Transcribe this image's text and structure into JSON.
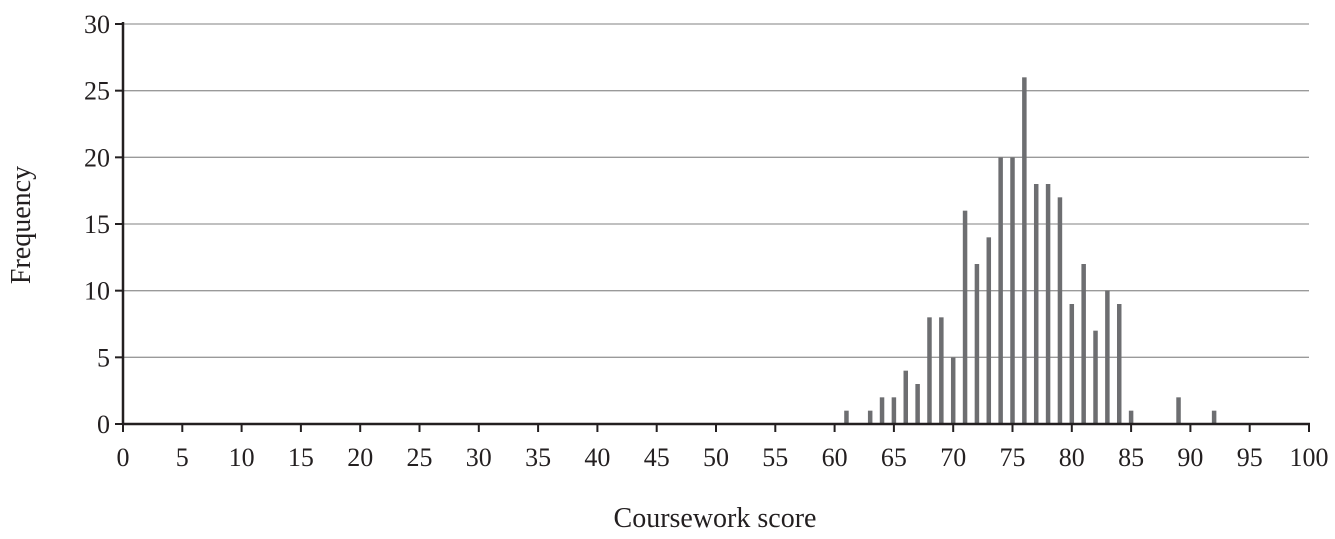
{
  "chart_data": {
    "type": "bar",
    "title": "",
    "xlabel": "Coursework score",
    "ylabel": "Frequency",
    "xlim": [
      0,
      100
    ],
    "ylim": [
      0,
      30
    ],
    "x_ticks": [
      0,
      5,
      10,
      15,
      20,
      25,
      30,
      35,
      40,
      45,
      50,
      55,
      60,
      65,
      70,
      75,
      80,
      85,
      90,
      95,
      100
    ],
    "y_ticks": [
      0,
      5,
      10,
      15,
      20,
      25,
      30
    ],
    "grid": "horizontal",
    "bar_color": "#6d6e71",
    "x": [
      61,
      63,
      64,
      65,
      66,
      67,
      68,
      69,
      70,
      71,
      72,
      73,
      74,
      75,
      76,
      77,
      78,
      79,
      80,
      81,
      82,
      83,
      84,
      85,
      89,
      92
    ],
    "values": [
      1,
      1,
      2,
      2,
      4,
      3,
      8,
      8,
      5,
      16,
      12,
      14,
      20,
      20,
      26,
      18,
      18,
      17,
      9,
      12,
      7,
      10,
      9,
      1,
      2,
      1
    ]
  }
}
